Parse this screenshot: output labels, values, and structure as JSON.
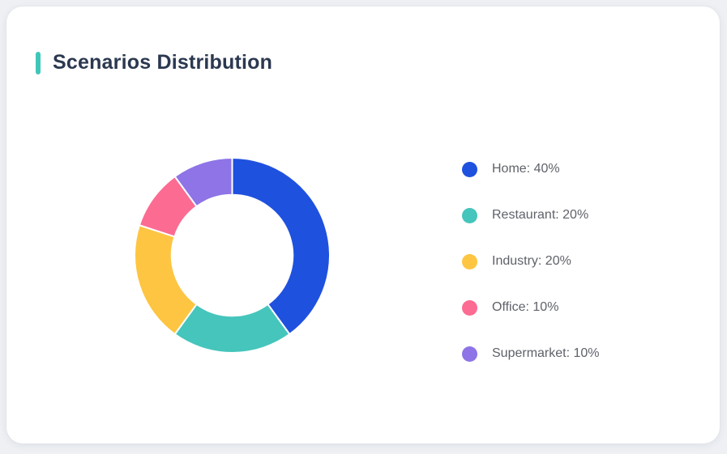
{
  "page": {
    "background_color": "#eef0f4"
  },
  "card": {
    "title": "Scenarios Distribution",
    "accent_color": "#3fc6b9",
    "background_color": "#ffffff"
  },
  "chart_data": {
    "type": "pie",
    "variant": "donut",
    "title": "Scenarios Distribution",
    "legend_position": "right",
    "start_angle_deg": 0,
    "direction": "clockwise",
    "inner_radius_ratio": 0.62,
    "categories": [
      "Home",
      "Restaurant",
      "Industry",
      "Office",
      "Supermarket"
    ],
    "values": [
      40,
      20,
      20,
      10,
      10
    ],
    "unit": "%",
    "segments": [
      {
        "label": "Home",
        "value": 40,
        "color": "#1f51df",
        "legend_label": "Home: 40%"
      },
      {
        "label": "Restaurant",
        "value": 20,
        "color": "#45c5bb",
        "legend_label": "Restaurant: 20%"
      },
      {
        "label": "Industry",
        "value": 20,
        "color": "#fdc541",
        "legend_label": "Industry: 20%"
      },
      {
        "label": "Office",
        "value": 10,
        "color": "#fc6b92",
        "legend_label": "Office: 10%"
      },
      {
        "label": "Supermarket",
        "value": 10,
        "color": "#8e74e6",
        "legend_label": "Supermarket: 10%"
      }
    ],
    "segment_gap_color": "#ffffff"
  }
}
